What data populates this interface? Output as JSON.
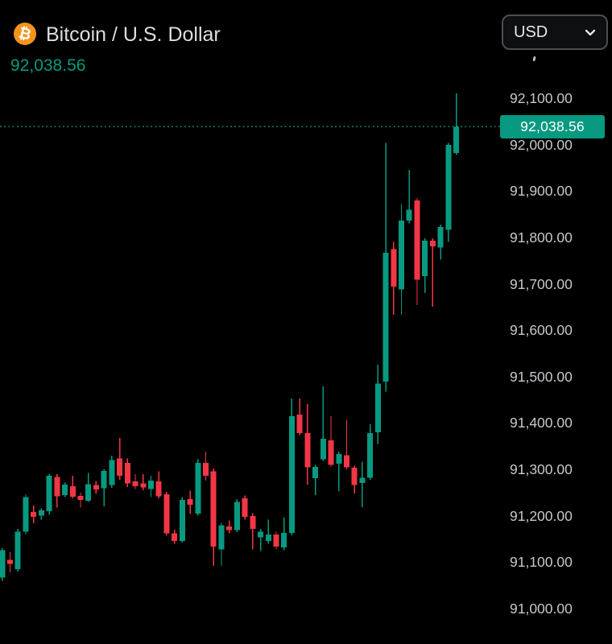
{
  "header": {
    "title": "Bitcoin / U.S. Dollar",
    "price": "92,038.56",
    "icon_symbol": "₿"
  },
  "currency_selector": {
    "value": "USD"
  },
  "price_scale": {
    "current_price_label": "92,038.56",
    "values": [
      92100,
      92000,
      91900,
      91800,
      91700,
      91600,
      91500,
      91400,
      91300,
      91200,
      91100,
      91000
    ],
    "labels": [
      "92,100.00",
      "92,000.00",
      "91,900.00",
      "91,800.00",
      "91,700.00",
      "91,600.00",
      "91,500.00",
      "91,400.00",
      "91,300.00",
      "91,200.00",
      "91,100.00",
      "91,000.00"
    ]
  },
  "colors": {
    "up": "#089981",
    "down": "#f23645",
    "bitcoin_orange": "#f7931a",
    "background": "#000000",
    "title_text": "#dcdde0",
    "axis_text": "#c6c8cd",
    "badge_text": "#ffffff"
  },
  "chart_data": {
    "type": "candlestick",
    "title": "Bitcoin / U.S. Dollar",
    "currency": "USD",
    "last_price": 92038.56,
    "price_line": 92038.56,
    "ylim": [
      91000,
      92160
    ],
    "y_tick_step": 100,
    "grid": false,
    "legend_position": "none",
    "candles_format": [
      "open",
      "high",
      "low",
      "close"
    ],
    "candles": [
      [
        91067,
        91130,
        91060,
        91126
      ],
      [
        91105,
        91122,
        91078,
        91096
      ],
      [
        91085,
        91172,
        91080,
        91166
      ],
      [
        91166,
        91246,
        91160,
        91240
      ],
      [
        91208,
        91222,
        91184,
        91198
      ],
      [
        91200,
        91216,
        91192,
        91212
      ],
      [
        91210,
        91290,
        91202,
        91286
      ],
      [
        91284,
        91290,
        91218,
        91242
      ],
      [
        91245,
        91272,
        91240,
        91267
      ],
      [
        91264,
        91286,
        91238,
        91241
      ],
      [
        91243,
        91250,
        91218,
        91234
      ],
      [
        91233,
        91292,
        91230,
        91268
      ],
      [
        91266,
        91275,
        91247,
        91257
      ],
      [
        91259,
        91300,
        91220,
        91297
      ],
      [
        91266,
        91330,
        91260,
        91320
      ],
      [
        91324,
        91368,
        91278,
        91286
      ],
      [
        91314,
        91324,
        91262,
        91270
      ],
      [
        91274,
        91290,
        91258,
        91264
      ],
      [
        91270,
        91290,
        91255,
        91261
      ],
      [
        91258,
        91286,
        91240,
        91276
      ],
      [
        91274,
        91296,
        91238,
        91242
      ],
      [
        91246,
        91252,
        91158,
        91162
      ],
      [
        91162,
        91170,
        91140,
        91146
      ],
      [
        91146,
        91240,
        91142,
        91234
      ],
      [
        91236,
        91254,
        91204,
        91224
      ],
      [
        91205,
        91322,
        91200,
        91314
      ],
      [
        91314,
        91338,
        91276,
        91286
      ],
      [
        91296,
        91302,
        91092,
        91134
      ],
      [
        91128,
        91186,
        91092,
        91180
      ],
      [
        91177,
        91190,
        91162,
        91169
      ],
      [
        91169,
        91236,
        91165,
        91230
      ],
      [
        91238,
        91244,
        91192,
        91198
      ],
      [
        91200,
        91206,
        91128,
        91172
      ],
      [
        91154,
        91172,
        91124,
        91166
      ],
      [
        91146,
        91192,
        91140,
        91160
      ],
      [
        91160,
        91166,
        91128,
        91134
      ],
      [
        91132,
        91196,
        91126,
        91163
      ],
      [
        91163,
        91453,
        91158,
        91415
      ],
      [
        91418,
        91453,
        91374,
        91378
      ],
      [
        91378,
        91441,
        91267,
        91305
      ],
      [
        91281,
        91310,
        91245,
        91305
      ],
      [
        91322,
        91479,
        91318,
        91366
      ],
      [
        91363,
        91415,
        91305,
        91310
      ],
      [
        91312,
        91338,
        91253,
        91333
      ],
      [
        91331,
        91407,
        91300,
        91305
      ],
      [
        91304,
        91308,
        91248,
        91266
      ],
      [
        91271,
        91317,
        91219,
        91282
      ],
      [
        91282,
        91397,
        91278,
        91378
      ],
      [
        91380,
        91526,
        91355,
        91485
      ],
      [
        91489,
        92004,
        91468,
        91767
      ],
      [
        91775,
        91790,
        91633,
        91694
      ],
      [
        91688,
        91872,
        91633,
        91836
      ],
      [
        91836,
        91946,
        91830,
        91860
      ],
      [
        91880,
        91885,
        91654,
        91709
      ],
      [
        91717,
        91798,
        91680,
        91793
      ],
      [
        91793,
        91798,
        91651,
        91781
      ],
      [
        91778,
        91828,
        91752,
        91822
      ],
      [
        91816,
        92004,
        91790,
        91999
      ],
      [
        91982,
        92110,
        91978,
        92038.56
      ]
    ]
  }
}
